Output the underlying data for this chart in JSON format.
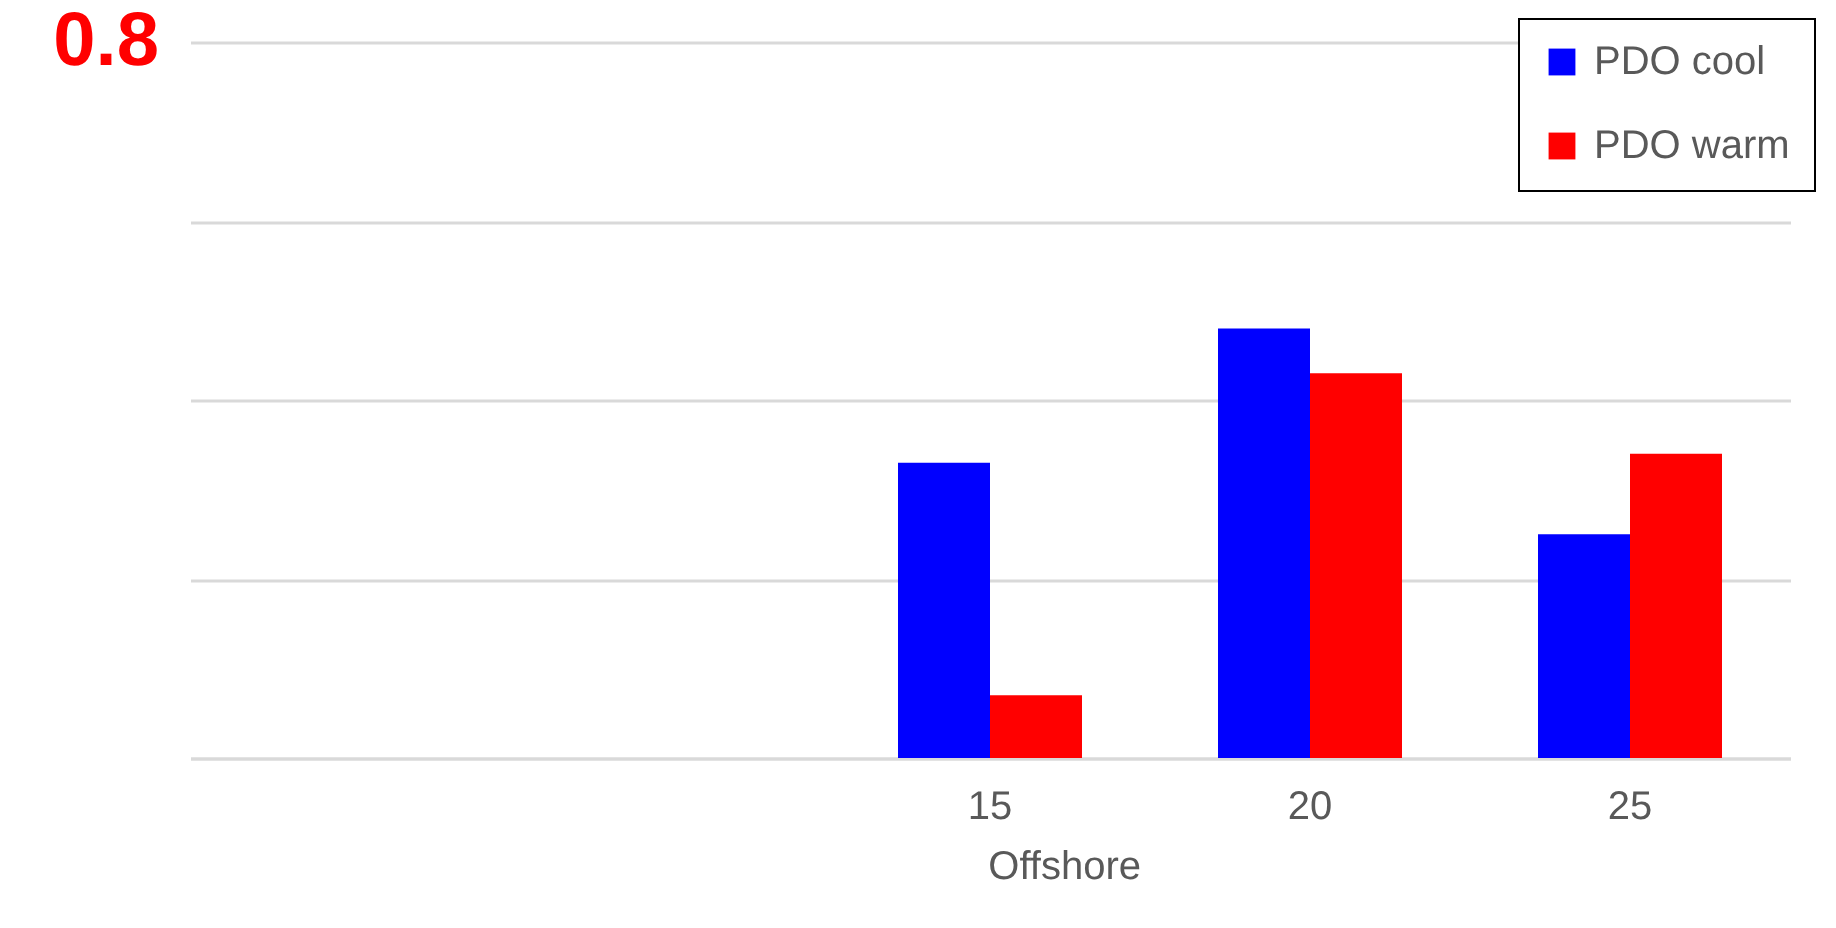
{
  "chart_data": {
    "type": "bar",
    "xlabel": "Offshore",
    "categories": [
      null,
      null,
      "15",
      "20",
      "25"
    ],
    "series": [
      {
        "name": "PDO cool",
        "color": "#0000ff",
        "values": [
          null,
          null,
          0.33,
          0.48,
          0.25
        ]
      },
      {
        "name": "PDO warm",
        "color": "#ff0000",
        "values": [
          null,
          null,
          0.07,
          0.43,
          0.34
        ]
      }
    ],
    "ylim": [
      0,
      0.8
    ],
    "yticks": [
      {
        "value": 0,
        "label": null
      },
      {
        "value": 0.2,
        "label": null
      },
      {
        "value": 0.4,
        "label": null
      },
      {
        "value": 0.6,
        "label": null
      },
      0.8
    ],
    "grid": "y",
    "legend": "top right"
  }
}
